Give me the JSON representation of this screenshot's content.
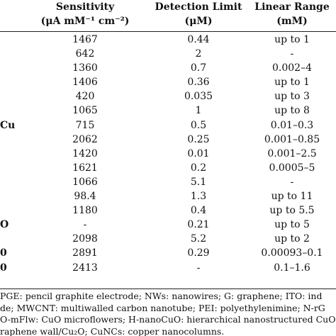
{
  "header": {
    "sensitivity_line1": "Sensitivity",
    "sensitivity_line2": "(μA mM⁻¹ cm⁻²)",
    "detection_line1": "Detection Limit",
    "detection_line2": "(μM)",
    "linear_line1": "Linear Range",
    "linear_line2": "(mM)"
  },
  "rows": [
    {
      "electrode": "",
      "sensitivity": "1467",
      "detection": "0.44",
      "linear": "up to 1"
    },
    {
      "electrode": "",
      "sensitivity": "642",
      "detection": "2",
      "linear": "-"
    },
    {
      "electrode": "",
      "sensitivity": "1360",
      "detection": "0.7",
      "linear": "0.002–4"
    },
    {
      "electrode": "",
      "sensitivity": "1406",
      "detection": "0.36",
      "linear": "up to 1"
    },
    {
      "electrode": "",
      "sensitivity": "420",
      "detection": "0.035",
      "linear": "up to 3"
    },
    {
      "electrode": "",
      "sensitivity": "1065",
      "detection": "1",
      "linear": "up to 8"
    },
    {
      "electrode": "Cu",
      "sensitivity": "715",
      "detection": "0.5",
      "linear": "0.01–0.3"
    },
    {
      "electrode": "",
      "sensitivity": "2062",
      "detection": "0.25",
      "linear": "0.001–0.85"
    },
    {
      "electrode": "",
      "sensitivity": "1420",
      "detection": "0.01",
      "linear": "0.001–2.5"
    },
    {
      "electrode": "",
      "sensitivity": "1621",
      "detection": "0.2",
      "linear": "0.0005–5"
    },
    {
      "electrode": "",
      "sensitivity": "1066",
      "detection": "5.1",
      "linear": "-"
    },
    {
      "electrode": "",
      "sensitivity": "98.4",
      "detection": "1.3",
      "linear": "up to 11"
    },
    {
      "electrode": "",
      "sensitivity": "1180",
      "detection": "0.4",
      "linear": "up to 5.5"
    },
    {
      "electrode": "O",
      "sensitivity": "-",
      "detection": "0.21",
      "linear": "up to 5"
    },
    {
      "electrode": "",
      "sensitivity": "2098",
      "detection": "5.2",
      "linear": "up to 2"
    },
    {
      "electrode": "0",
      "sensitivity": "2891",
      "detection": "0.29",
      "linear": "0.00093–0.1"
    },
    {
      "electrode": "0",
      "sensitivity": "2413",
      "detection": "-",
      "linear": "0.1–1.6"
    }
  ],
  "notes": [
    "PGE: pencil graphite electrode; NWs: nanowires; G: graphene; ITO: ind",
    "de; MWCNT: multiwalled carbon nanotube; PEI: polyethylenimine; N-rG",
    "O-mFlw: CuO microflowers; H-nanoCuO: hierarchical nanostructured CuO",
    "raphene wall/Cu₂O; CuNCs: copper nanocolumns."
  ]
}
